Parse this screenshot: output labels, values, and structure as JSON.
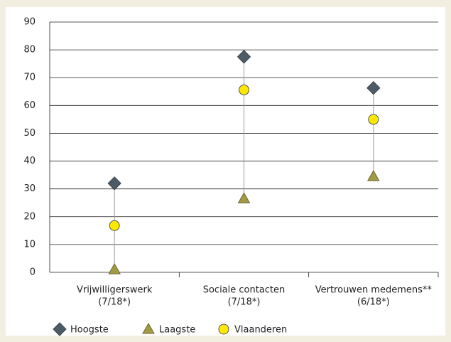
{
  "chart_data": {
    "type": "dot-range",
    "categories": [
      [
        "Vrijwilligerswerk",
        "(7/18*)"
      ],
      [
        "Sociale contacten",
        "(7/18*)"
      ],
      [
        "Vertrouwen medemens**",
        "(6/18*)"
      ]
    ],
    "series": [
      {
        "name": "Hoogste",
        "color": "#4d5b66",
        "marker": "diamond",
        "values": [
          32,
          77.5,
          66.3
        ]
      },
      {
        "name": "Laagste",
        "color": "#a39a45",
        "marker": "triangle",
        "values": [
          1,
          26.5,
          34.5
        ]
      },
      {
        "name": "Vlaanderen",
        "color": "#ffe800",
        "marker": "circle",
        "values": [
          16.8,
          65.6,
          55
        ]
      }
    ],
    "ylim": [
      0,
      90
    ],
    "yticks": [
      0,
      10,
      20,
      30,
      40,
      50,
      60,
      70,
      80,
      90
    ],
    "grid": true
  }
}
